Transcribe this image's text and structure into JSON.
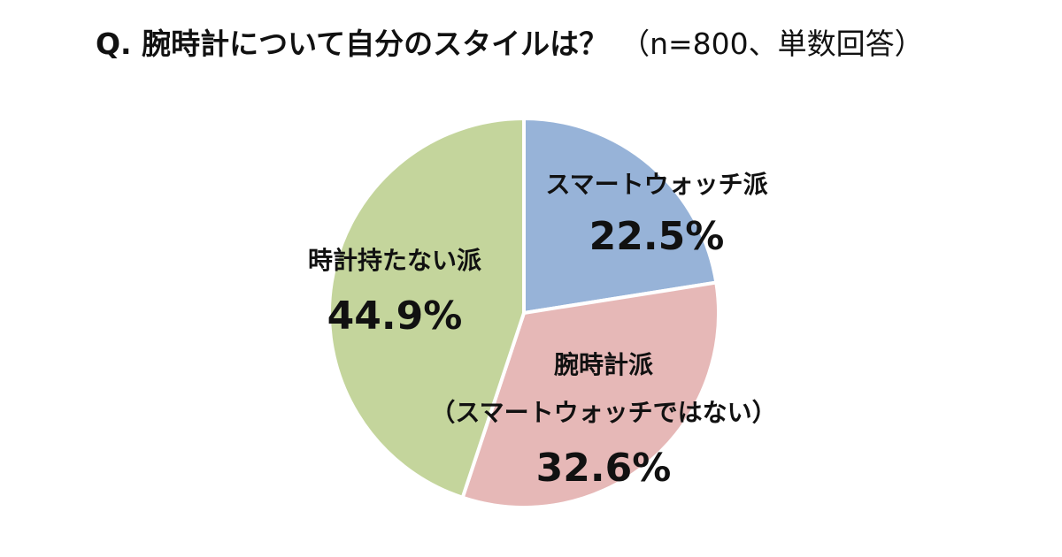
{
  "header": {
    "question": "Q. 腕時計について自分のスタイルは？",
    "note": "（n=800、単数回答）"
  },
  "colors": {
    "smartwatch": "#97b3d8",
    "wristwatch": "#e6b8b7",
    "none": "#c4d59c"
  },
  "chart_data": {
    "type": "pie",
    "title": "Q. 腕時計について自分のスタイルは？ （n=800、単数回答）",
    "start_angle": "12 o'clock",
    "direction": "clockwise",
    "slices": [
      {
        "key": "smartwatch",
        "name": "スマートウォッチ派",
        "value": 22.5,
        "label": "22.5%"
      },
      {
        "key": "wristwatch",
        "name": "腕時計派",
        "sub_name": "（スマートウォッチではない）",
        "value": 32.6,
        "label": "32.6%"
      },
      {
        "key": "none",
        "name": "時計持たない派",
        "value": 44.9,
        "label": "44.9%"
      }
    ]
  }
}
